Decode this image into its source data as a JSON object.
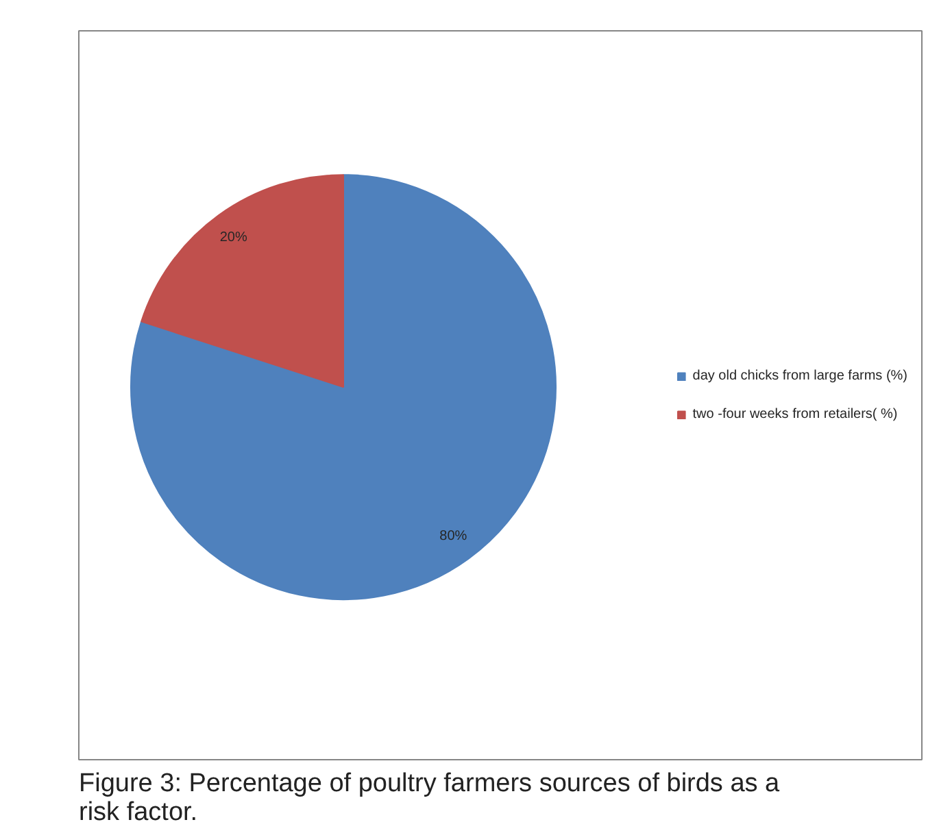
{
  "chart_data": {
    "type": "pie",
    "categories": [
      "day old chicks from large farms (%)",
      "two -four weeks from retailers( %)"
    ],
    "values": [
      80,
      20
    ],
    "colors": [
      "#4f81bd",
      "#c0504d"
    ],
    "data_labels": true,
    "value_labels": [
      "80%",
      "20%"
    ],
    "legend": "right",
    "annotations": [
      "Figure 3: Percentage of poultry farmers sources of birds as a risk factor."
    ]
  }
}
